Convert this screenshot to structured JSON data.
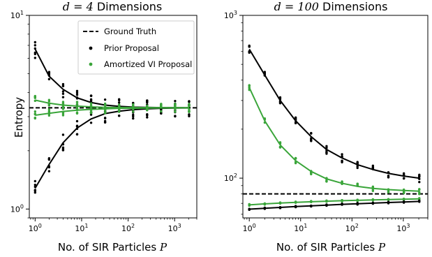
{
  "colors": {
    "ground_truth": "#000000",
    "prior": "#000000",
    "amortized": "#3aa53a"
  },
  "chart_data": [
    {
      "type": "scatter",
      "title_math": "d = 4",
      "title_text": "Dimensions",
      "xlabel": "No. of SIR Particles",
      "xlabel_var": "P",
      "ylabel": "Entropy",
      "xscale": "log",
      "yscale": "log",
      "xlim": [
        0.75,
        3000
      ],
      "ylim": [
        0.9,
        10
      ],
      "x_ticks": [
        {
          "value": 1,
          "base": "10",
          "exp": "0"
        },
        {
          "value": 10,
          "base": "10",
          "exp": "1"
        },
        {
          "value": 100,
          "base": "10",
          "exp": "2"
        },
        {
          "value": 1000,
          "base": "10",
          "exp": "3"
        }
      ],
      "y_ticks": [
        {
          "value": 1,
          "base": "10",
          "exp": "0"
        },
        {
          "value": 10,
          "base": "10",
          "exp": "1"
        }
      ],
      "legend": {
        "placement": "upper-right",
        "entries": [
          {
            "label": "Ground Truth",
            "style": "dash"
          },
          {
            "label": "Prior Proposal",
            "style": "dot-black"
          },
          {
            "label": "Amortized VI Proposal",
            "style": "dot-green"
          }
        ]
      },
      "ground_truth": 3.33,
      "x": [
        1,
        2,
        4,
        8,
        16,
        32,
        64,
        128,
        256,
        512,
        1024,
        2048
      ],
      "series": [
        {
          "name": "Prior Proposal",
          "color": "prior",
          "curve": [
            6.7,
            4.85,
            4.15,
            3.75,
            3.55,
            3.44,
            3.39,
            3.36,
            3.35,
            3.34,
            3.34,
            3.335
          ],
          "spread": 0.1
        },
        {
          "name": "Prior Proposal",
          "color": "prior",
          "curve": [
            1.28,
            1.7,
            2.2,
            2.62,
            2.92,
            3.11,
            3.2,
            3.26,
            3.29,
            3.31,
            3.32,
            3.325
          ],
          "spread": 0.1
        },
        {
          "name": "Amortized VI Proposal",
          "color": "amortized",
          "curve": [
            3.65,
            3.52,
            3.44,
            3.4,
            3.37,
            3.35,
            3.345,
            3.34,
            3.338,
            3.336,
            3.335,
            3.335
          ],
          "spread": 0.05
        },
        {
          "name": "Amortized VI Proposal",
          "color": "amortized",
          "curve": [
            3.05,
            3.12,
            3.19,
            3.24,
            3.27,
            3.29,
            3.31,
            3.315,
            3.32,
            3.325,
            3.327,
            3.329
          ],
          "spread": 0.05
        }
      ]
    },
    {
      "type": "scatter",
      "title_math": "d = 100",
      "title_text": "Dimensions",
      "xlabel": "No. of SIR Particles",
      "xlabel_var": "P",
      "ylabel": "",
      "xscale": "log",
      "yscale": "log",
      "xlim": [
        0.75,
        3000
      ],
      "ylim": [
        57,
        1000
      ],
      "x_ticks": [
        {
          "value": 1,
          "base": "10",
          "exp": "0"
        },
        {
          "value": 10,
          "base": "10",
          "exp": "1"
        },
        {
          "value": 100,
          "base": "10",
          "exp": "2"
        },
        {
          "value": 1000,
          "base": "10",
          "exp": "3"
        }
      ],
      "y_ticks": [
        {
          "value": 100,
          "base": "10",
          "exp": "2"
        },
        {
          "value": 1000,
          "base": "10",
          "exp": "3"
        }
      ],
      "ground_truth": 80,
      "x": [
        1,
        2,
        4,
        8,
        16,
        32,
        64,
        128,
        256,
        512,
        1024,
        2048
      ],
      "series": [
        {
          "name": "Prior Proposal",
          "color": "prior",
          "curve": [
            620,
            430,
            300,
            225,
            180,
            150,
            133,
            121,
            113,
            107,
            103,
            100
          ],
          "spread": 0.06
        },
        {
          "name": "Amortized VI Proposal",
          "color": "amortized",
          "curve": [
            360,
            225,
            160,
            128,
            110,
            99,
            93,
            89,
            86.5,
            85,
            84,
            83.2
          ],
          "spread": 0.04
        },
        {
          "name": "Amortized VI Proposal",
          "color": "amortized",
          "curve": [
            68.5,
            69.5,
            70.3,
            71,
            71.6,
            72.2,
            72.7,
            73.1,
            73.5,
            73.9,
            74.2,
            74.6
          ],
          "spread": 0.01
        },
        {
          "name": "Prior Proposal",
          "color": "prior",
          "curve": [
            64.5,
            65.3,
            66.1,
            66.9,
            67.6,
            68.3,
            69,
            69.6,
            70.2,
            70.8,
            71.4,
            72
          ],
          "spread": 0.01
        }
      ]
    }
  ]
}
